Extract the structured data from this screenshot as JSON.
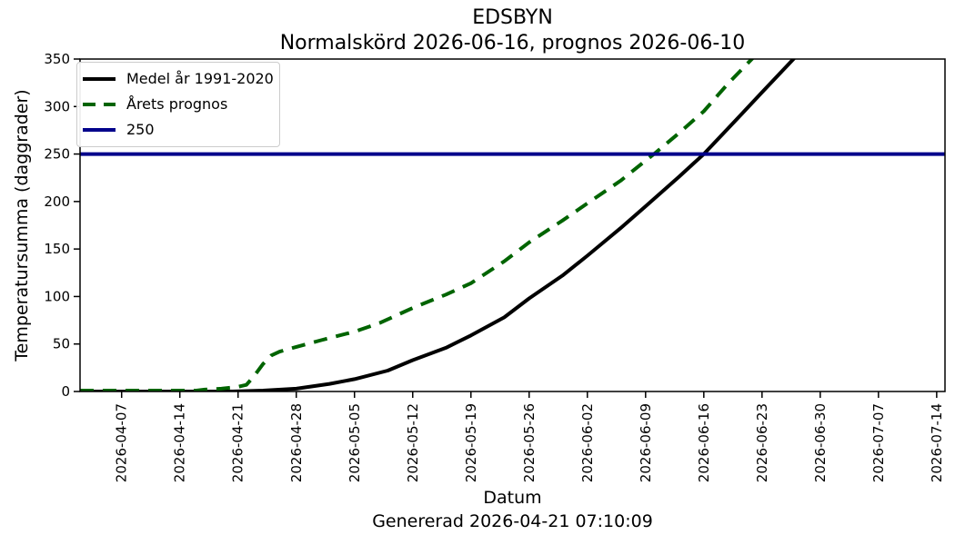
{
  "chart_data": {
    "type": "line",
    "title": "EDSBYN",
    "subtitle": "Normalskörd 2026-06-16, prognos 2026-06-10",
    "xlabel": "Datum",
    "ylabel": "Temperatursumma (daggrader)",
    "footer": "Genererad 2026-04-21 07:10:09",
    "ylim": [
      0,
      350
    ],
    "y_ticks": [
      0,
      50,
      100,
      150,
      200,
      250,
      300,
      350
    ],
    "x_ticks": [
      "2026-04-07",
      "2026-04-14",
      "2026-04-21",
      "2026-04-28",
      "2026-05-05",
      "2026-05-12",
      "2026-05-19",
      "2026-05-26",
      "2026-06-02",
      "2026-06-09",
      "2026-06-16",
      "2026-06-23",
      "2026-06-30",
      "2026-07-07",
      "2026-07-14"
    ],
    "x_range": [
      "2026-04-02",
      "2026-07-15"
    ],
    "grid": false,
    "legend_position": "upper left",
    "series": [
      {
        "name": "Medel år 1991-2020",
        "color": "#000000",
        "style": "solid",
        "points": [
          [
            "2026-04-02",
            0
          ],
          [
            "2026-04-14",
            0
          ],
          [
            "2026-04-20",
            0
          ],
          [
            "2026-04-24",
            1
          ],
          [
            "2026-04-28",
            3
          ],
          [
            "2026-05-02",
            8
          ],
          [
            "2026-05-05",
            13
          ],
          [
            "2026-05-09",
            22
          ],
          [
            "2026-05-12",
            33
          ],
          [
            "2026-05-16",
            46
          ],
          [
            "2026-05-19",
            59
          ],
          [
            "2026-05-23",
            78
          ],
          [
            "2026-05-26",
            98
          ],
          [
            "2026-05-30",
            122
          ],
          [
            "2026-06-02",
            143
          ],
          [
            "2026-06-06",
            172
          ],
          [
            "2026-06-09",
            195
          ],
          [
            "2026-06-13",
            226
          ],
          [
            "2026-06-16",
            250
          ],
          [
            "2026-06-20",
            287
          ],
          [
            "2026-06-23",
            315
          ],
          [
            "2026-06-27",
            352
          ],
          [
            "2026-06-28",
            362
          ]
        ]
      },
      {
        "name": "Årets prognos",
        "color": "#006400",
        "style": "dashed",
        "points": [
          [
            "2026-04-02",
            1
          ],
          [
            "2026-04-10",
            1
          ],
          [
            "2026-04-16",
            1
          ],
          [
            "2026-04-17",
            2
          ],
          [
            "2026-04-19",
            3
          ],
          [
            "2026-04-21",
            5
          ],
          [
            "2026-04-22",
            7
          ],
          [
            "2026-04-23",
            17
          ],
          [
            "2026-04-24",
            29
          ],
          [
            "2026-04-25",
            38
          ],
          [
            "2026-04-26",
            42
          ],
          [
            "2026-04-28",
            47
          ],
          [
            "2026-05-01",
            54
          ],
          [
            "2026-05-05",
            63
          ],
          [
            "2026-05-08",
            72
          ],
          [
            "2026-05-12",
            88
          ],
          [
            "2026-05-16",
            102
          ],
          [
            "2026-05-19",
            114
          ],
          [
            "2026-05-23",
            137
          ],
          [
            "2026-05-26",
            157
          ],
          [
            "2026-05-30",
            180
          ],
          [
            "2026-06-02",
            198
          ],
          [
            "2026-06-06",
            222
          ],
          [
            "2026-06-09",
            243
          ],
          [
            "2026-06-10",
            250
          ],
          [
            "2026-06-13",
            272
          ],
          [
            "2026-06-16",
            295
          ],
          [
            "2026-06-19",
            325
          ],
          [
            "2026-06-22",
            352
          ],
          [
            "2026-06-23",
            362
          ]
        ]
      },
      {
        "name": "250",
        "color": "#00008b",
        "style": "hline",
        "value": 250
      }
    ]
  }
}
